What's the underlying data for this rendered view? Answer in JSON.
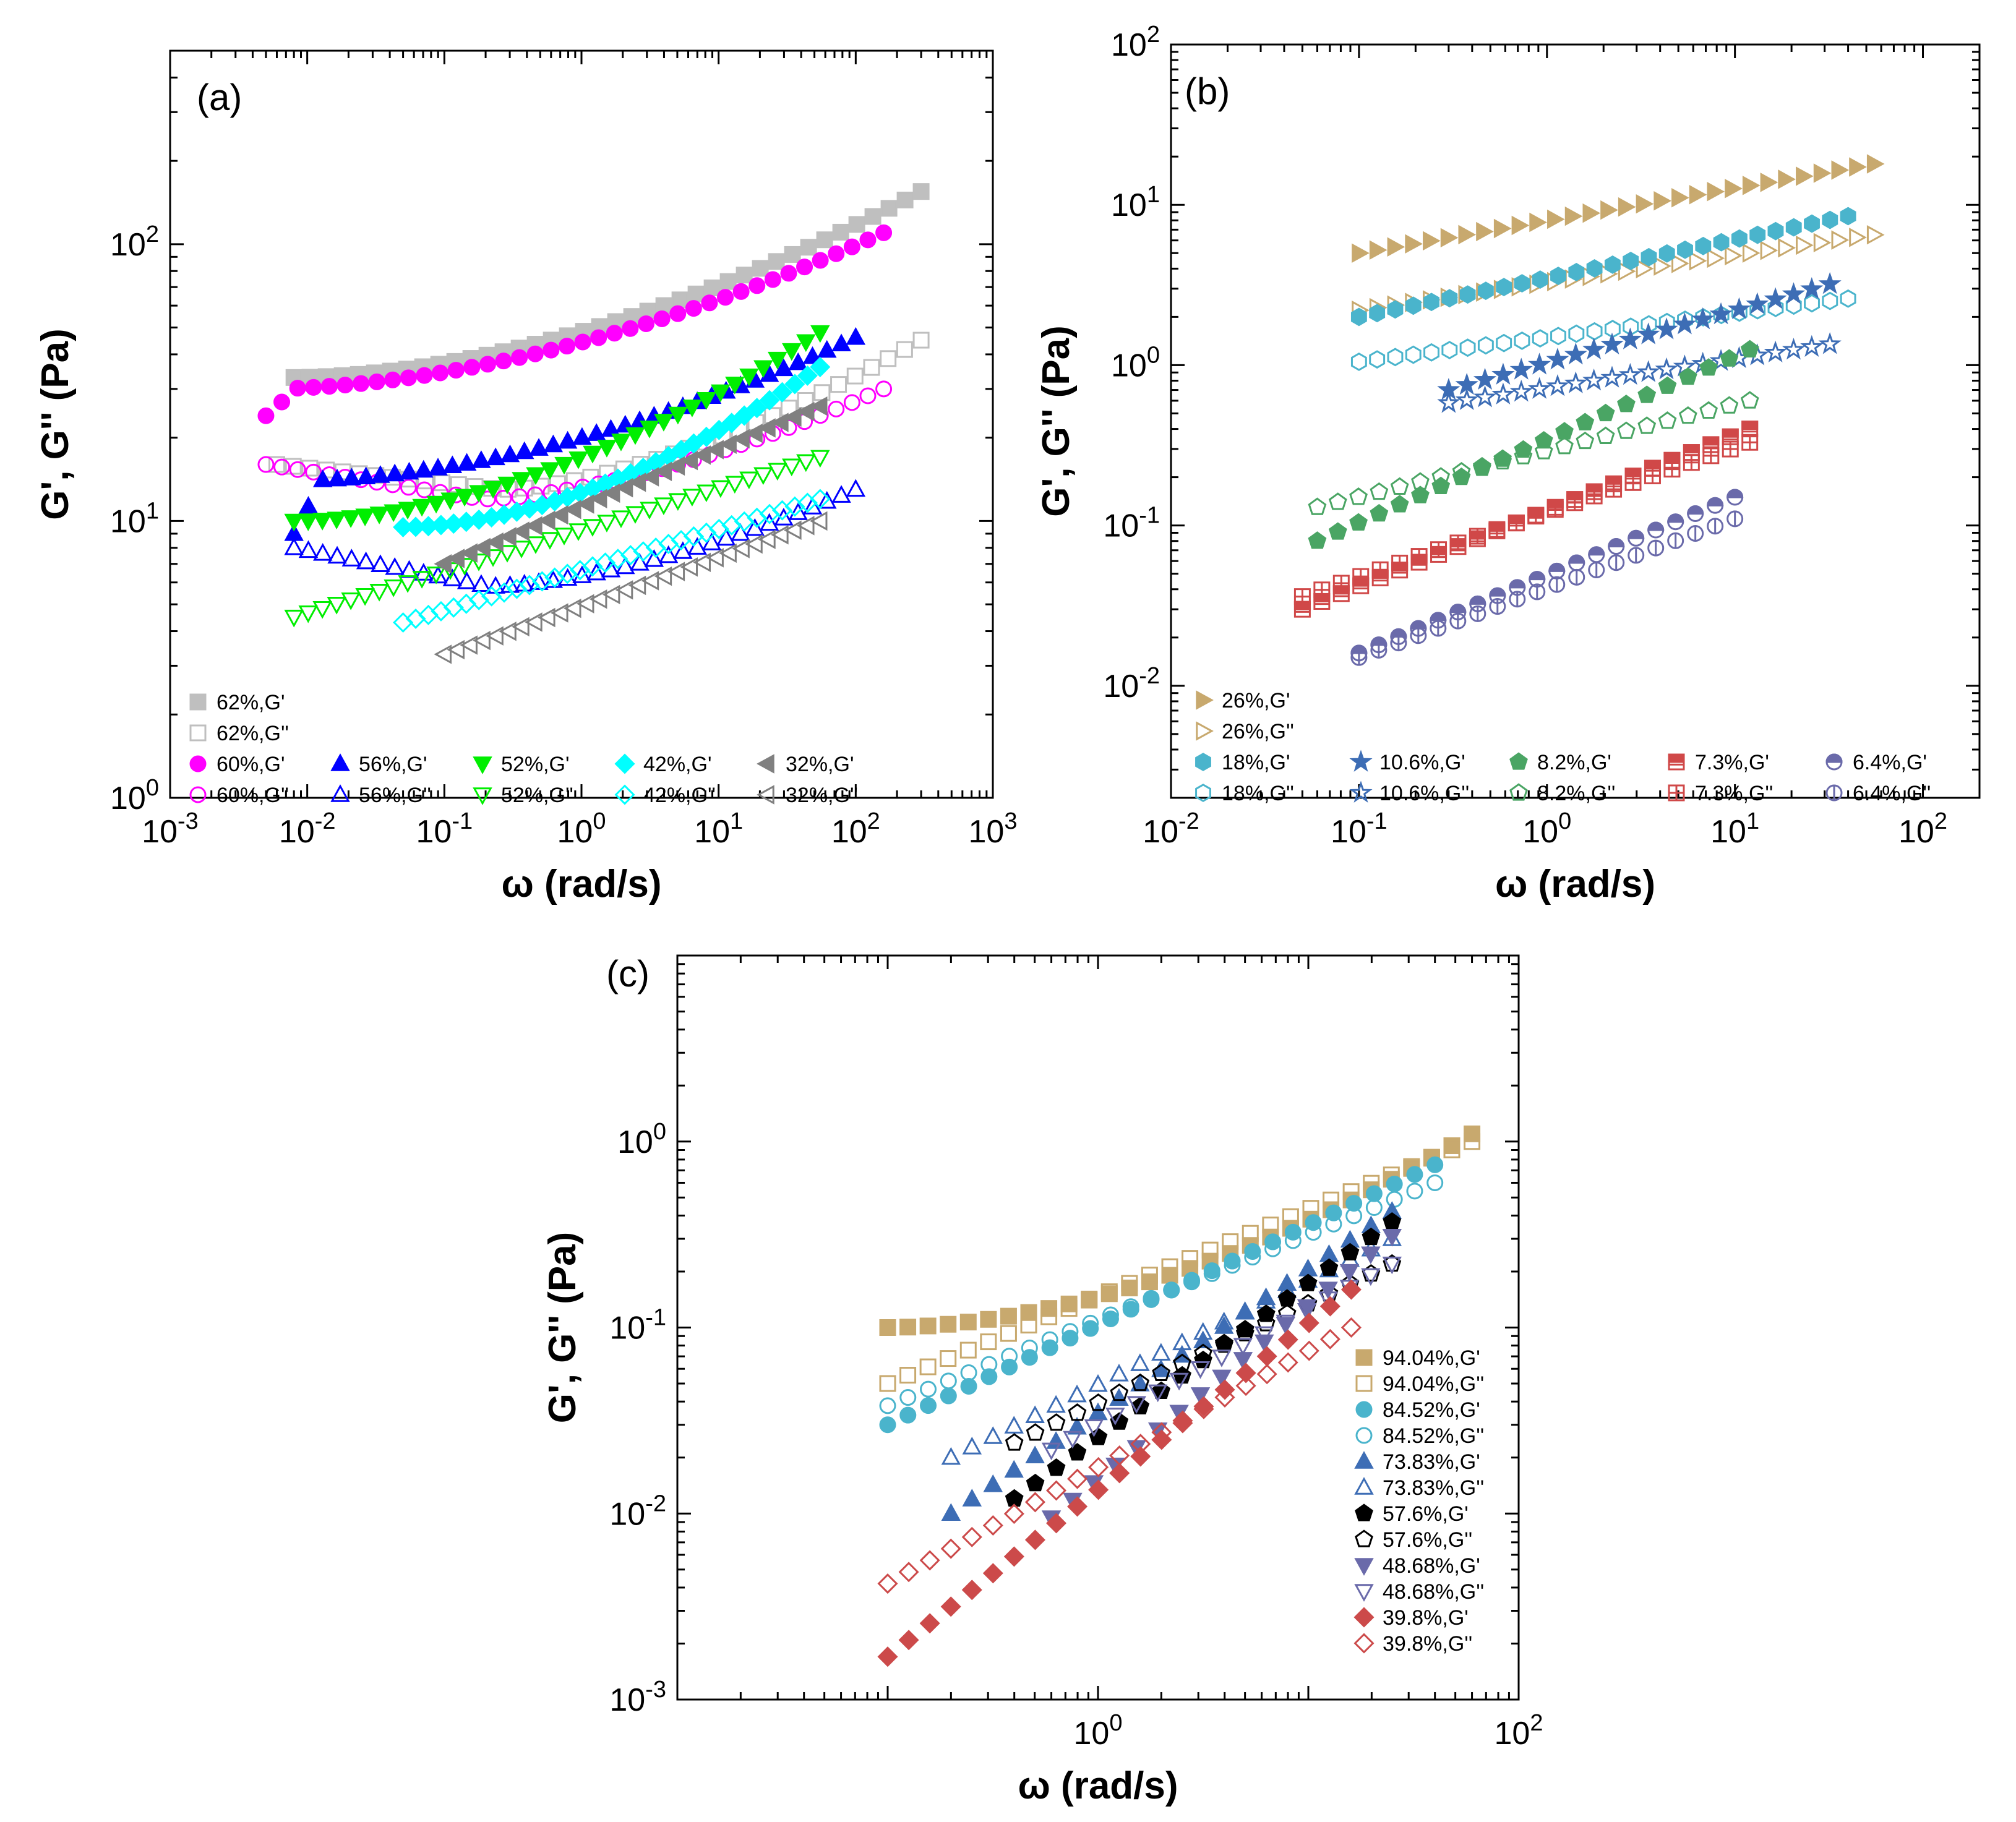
{
  "chart_data": [
    {
      "panel": "(a)",
      "type": "scatter",
      "xlabel": "ω (rad/s)",
      "ylabel": "G', G'' (Pa)",
      "xscale": "log",
      "yscale": "log",
      "xlim": [
        0.001,
        1000
      ],
      "ylim": [
        1,
        500
      ],
      "xticks": [
        {
          "v": 0.001,
          "b": "10",
          "e": "-3"
        },
        {
          "v": 0.01,
          "b": "10",
          "e": "-2"
        },
        {
          "v": 0.1,
          "b": "10",
          "e": "-1"
        },
        {
          "v": 1,
          "b": "10",
          "e": "0"
        },
        {
          "v": 10,
          "b": "10",
          "e": "1"
        },
        {
          "v": 100,
          "b": "10",
          "e": "2"
        },
        {
          "v": 1000,
          "b": "10",
          "e": "3"
        }
      ],
      "yticks": [
        {
          "v": 1,
          "b": "10",
          "e": "0"
        },
        {
          "v": 10,
          "b": "10",
          "e": "1"
        },
        {
          "v": 100,
          "b": "10",
          "e": "2"
        }
      ],
      "legend_position": "bottom-left",
      "series": [
        {
          "name": "62%,G'",
          "color": "#bfbfbf",
          "marker": "square",
          "filled": true,
          "x": [
            0.008,
            300
          ],
          "y": [
            33,
            155
          ],
          "curve": "late-rise",
          "n": 40
        },
        {
          "name": "62%,G''",
          "color": "#bfbfbf",
          "marker": "square",
          "filled": false,
          "x": [
            0.006,
            300
          ],
          "y": [
            16,
            45
          ],
          "curve": "dip",
          "ymin": 13,
          "n": 40
        },
        {
          "name": "60%,G'",
          "color": "#ff00ff",
          "marker": "circle",
          "filled": true,
          "x": [
            0.005,
            160
          ],
          "y": [
            24,
            110
          ],
          "curve": "late-rise",
          "ystart": 30,
          "n": 40
        },
        {
          "name": "60%,G''",
          "color": "#ff00ff",
          "marker": "circle",
          "filled": false,
          "x": [
            0.005,
            160
          ],
          "y": [
            16,
            30
          ],
          "curve": "dip",
          "ymin": 12,
          "n": 40
        },
        {
          "name": "56%,G'",
          "color": "#0000ff",
          "marker": "triangle-up",
          "filled": true,
          "x": [
            0.008,
            100
          ],
          "y": [
            9,
            46
          ],
          "curve": "late-rise",
          "ystart": 14,
          "n": 40
        },
        {
          "name": "56%,G''",
          "color": "#0000ff",
          "marker": "triangle-up",
          "filled": false,
          "x": [
            0.008,
            100
          ],
          "y": [
            8,
            13
          ],
          "curve": "dip",
          "ymin": 5.8,
          "n": 40
        },
        {
          "name": "52%,G'",
          "color": "#00ee00",
          "marker": "triangle-down",
          "filled": true,
          "x": [
            0.008,
            55
          ],
          "y": [
            10,
            48
          ],
          "curve": "late-rise",
          "n": 38
        },
        {
          "name": "52%,G''",
          "color": "#00ee00",
          "marker": "triangle-down",
          "filled": false,
          "x": [
            0.008,
            55
          ],
          "y": [
            4.5,
            17
          ],
          "curve": "power",
          "n": 38
        },
        {
          "name": "42%,G'",
          "color": "#00ffff",
          "marker": "diamond",
          "filled": true,
          "x": [
            0.05,
            55
          ],
          "y": [
            9.5,
            36
          ],
          "curve": "late-rise",
          "n": 34
        },
        {
          "name": "42%,G''",
          "color": "#00ffff",
          "marker": "diamond",
          "filled": false,
          "x": [
            0.05,
            55
          ],
          "y": [
            4.3,
            12
          ],
          "curve": "power",
          "n": 34
        },
        {
          "name": "32%,G'",
          "color": "#808080",
          "marker": "triangle-left",
          "filled": true,
          "x": [
            0.1,
            55
          ],
          "y": [
            7,
            26
          ],
          "curve": "power",
          "n": 30
        },
        {
          "name": "32%,G''",
          "color": "#808080",
          "marker": "triangle-left",
          "filled": false,
          "x": [
            0.1,
            55
          ],
          "y": [
            3.3,
            10
          ],
          "curve": "power",
          "n": 30
        }
      ]
    },
    {
      "panel": "(b)",
      "type": "scatter",
      "xlabel": "ω (rad/s)",
      "ylabel": "G', G'' (Pa)",
      "xscale": "log",
      "yscale": "log",
      "xlim": [
        0.01,
        200
      ],
      "ylim": [
        0.002,
        100
      ],
      "xticks": [
        {
          "v": 0.01,
          "b": "10",
          "e": "-2"
        },
        {
          "v": 0.1,
          "b": "10",
          "e": "-1"
        },
        {
          "v": 1,
          "b": "10",
          "e": "0"
        },
        {
          "v": 10,
          "b": "10",
          "e": "1"
        },
        {
          "v": 100,
          "b": "10",
          "e": "2"
        }
      ],
      "yticks": [
        {
          "v": 0.01,
          "b": "10",
          "e": "-2"
        },
        {
          "v": 0.1,
          "b": "10",
          "e": "-1"
        },
        {
          "v": 1,
          "b": "10",
          "e": "0"
        },
        {
          "v": 10,
          "b": "10",
          "e": "1"
        },
        {
          "v": 100,
          "b": "10",
          "e": "2"
        }
      ],
      "legend_position": "bottom-left",
      "series": [
        {
          "name": "26%,G'",
          "color": "#c8a96e",
          "marker": "triangle-right",
          "filled": true,
          "x": [
            0.1,
            55
          ],
          "y": [
            5,
            18
          ],
          "curve": "power",
          "n": 30
        },
        {
          "name": "26%,G''",
          "color": "#c8a96e",
          "marker": "triangle-right",
          "filled": false,
          "x": [
            0.1,
            55
          ],
          "y": [
            2.2,
            6.5
          ],
          "curve": "power",
          "n": 30
        },
        {
          "name": "18%,G'",
          "color": "#4ab4cc",
          "marker": "hexagon",
          "filled": true,
          "x": [
            0.1,
            40
          ],
          "y": [
            2,
            8.5
          ],
          "curve": "power",
          "n": 28
        },
        {
          "name": "18%,G''",
          "color": "#4ab4cc",
          "marker": "hexagon",
          "filled": false,
          "x": [
            0.1,
            40
          ],
          "y": [
            1.05,
            2.6
          ],
          "curve": "power",
          "n": 28
        },
        {
          "name": "10.6%,G'",
          "color": "#3d6db5",
          "marker": "star",
          "filled": true,
          "x": [
            0.3,
            32
          ],
          "y": [
            0.7,
            3.2
          ],
          "curve": "power",
          "n": 22
        },
        {
          "name": "10.6%,G''",
          "color": "#3d6db5",
          "marker": "star",
          "filled": false,
          "x": [
            0.3,
            32
          ],
          "y": [
            0.58,
            1.35
          ],
          "curve": "power",
          "n": 22
        },
        {
          "name": "8.2%,G'",
          "color": "#4aa564",
          "marker": "pentagon",
          "filled": true,
          "x": [
            0.06,
            12
          ],
          "y": [
            0.08,
            1.25
          ],
          "curve": "power",
          "n": 22
        },
        {
          "name": "8.2%,G''",
          "color": "#4aa564",
          "marker": "pentagon",
          "filled": false,
          "x": [
            0.06,
            12
          ],
          "y": [
            0.13,
            0.6
          ],
          "curve": "power",
          "n": 22
        },
        {
          "name": "7.3%,G'",
          "color": "#d04848",
          "marker": "square-half",
          "filled": true,
          "x": [
            0.05,
            12
          ],
          "y": [
            0.03,
            0.4
          ],
          "curve": "power",
          "n": 24
        },
        {
          "name": "7.3%,G''",
          "color": "#d04848",
          "marker": "square-cross",
          "filled": false,
          "x": [
            0.05,
            12
          ],
          "y": [
            0.036,
            0.33
          ],
          "curve": "power",
          "n": 24
        },
        {
          "name": "6.4%,G'",
          "color": "#6a6aaa",
          "marker": "circle-half",
          "filled": true,
          "x": [
            0.1,
            10
          ],
          "y": [
            0.016,
            0.15
          ],
          "curve": "power",
          "n": 20
        },
        {
          "name": "6.4%,G''",
          "color": "#6a6aaa",
          "marker": "circle-vline",
          "filled": false,
          "x": [
            0.1,
            10
          ],
          "y": [
            0.015,
            0.11
          ],
          "curve": "power",
          "n": 20
        }
      ]
    },
    {
      "panel": "(c)",
      "type": "scatter",
      "xlabel": "ω (rad/s)",
      "ylabel": "G', G'' (Pa)",
      "xscale": "log",
      "yscale": "log",
      "xlim": [
        0.01,
        100
      ],
      "ylim": [
        0.001,
        10
      ],
      "xticks": [
        {
          "v": 1,
          "b": "10",
          "e": "0"
        },
        {
          "v": 100,
          "b": "10",
          "e": "2"
        }
      ],
      "yticks": [
        {
          "v": 0.001,
          "b": "10",
          "e": "-3"
        },
        {
          "v": 0.01,
          "b": "10",
          "e": "-2"
        },
        {
          "v": 0.1,
          "b": "10",
          "e": "-1"
        },
        {
          "v": 1,
          "b": "10",
          "e": "0"
        }
      ],
      "legend_position": "bottom-right",
      "series": [
        {
          "name": "94.04%,G'",
          "color": "#c8a96e",
          "marker": "square",
          "filled": true,
          "x": [
            0.1,
            60
          ],
          "y": [
            0.1,
            1.1
          ],
          "curve": "late-rise",
          "n": 30
        },
        {
          "name": "94.04%,G''",
          "color": "#c8a96e",
          "marker": "square",
          "filled": false,
          "x": [
            0.1,
            60
          ],
          "y": [
            0.05,
            1.0
          ],
          "curve": "power",
          "n": 30
        },
        {
          "name": "84.52%,G'",
          "color": "#4ab4cc",
          "marker": "circle",
          "filled": true,
          "x": [
            0.1,
            40
          ],
          "y": [
            0.03,
            0.75
          ],
          "curve": "power",
          "n": 28
        },
        {
          "name": "84.52%,G''",
          "color": "#4ab4cc",
          "marker": "circle",
          "filled": false,
          "x": [
            0.1,
            40
          ],
          "y": [
            0.038,
            0.6
          ],
          "curve": "power",
          "n": 28
        },
        {
          "name": "73.83%,G'",
          "color": "#3d6db5",
          "marker": "triangle-up",
          "filled": true,
          "x": [
            0.2,
            25
          ],
          "y": [
            0.01,
            0.42
          ],
          "curve": "power",
          "n": 22
        },
        {
          "name": "73.83%,G''",
          "color": "#3d6db5",
          "marker": "triangle-up",
          "filled": false,
          "x": [
            0.2,
            25
          ],
          "y": [
            0.02,
            0.3
          ],
          "curve": "power",
          "n": 22
        },
        {
          "name": "57.6%,G'",
          "color": "#000000",
          "marker": "pentagon",
          "filled": true,
          "x": [
            0.4,
            25
          ],
          "y": [
            0.012,
            0.37
          ],
          "curve": "power",
          "n": 19
        },
        {
          "name": "57.6%,G''",
          "color": "#000000",
          "marker": "pentagon",
          "filled": false,
          "x": [
            0.4,
            25
          ],
          "y": [
            0.024,
            0.22
          ],
          "curve": "power",
          "n": 19
        },
        {
          "name": "48.68%,G'",
          "color": "#6a6aaa",
          "marker": "triangle-down",
          "filled": true,
          "x": [
            0.6,
            25
          ],
          "y": [
            0.0095,
            0.31
          ],
          "curve": "power",
          "n": 17
        },
        {
          "name": "48.68%,G''",
          "color": "#6a6aaa",
          "marker": "triangle-down",
          "filled": false,
          "x": [
            0.6,
            25
          ],
          "y": [
            0.022,
            0.22
          ],
          "curve": "power",
          "n": 17
        },
        {
          "name": "39.8%,G'",
          "color": "#cc4a4a",
          "marker": "diamond",
          "filled": true,
          "x": [
            0.1,
            16
          ],
          "y": [
            0.0017,
            0.16
          ],
          "curve": "power",
          "n": 23
        },
        {
          "name": "39.8%,G''",
          "color": "#cc4a4a",
          "marker": "diamond",
          "filled": false,
          "x": [
            0.1,
            16
          ],
          "y": [
            0.0042,
            0.1
          ],
          "curve": "power",
          "n": 23
        }
      ]
    }
  ]
}
